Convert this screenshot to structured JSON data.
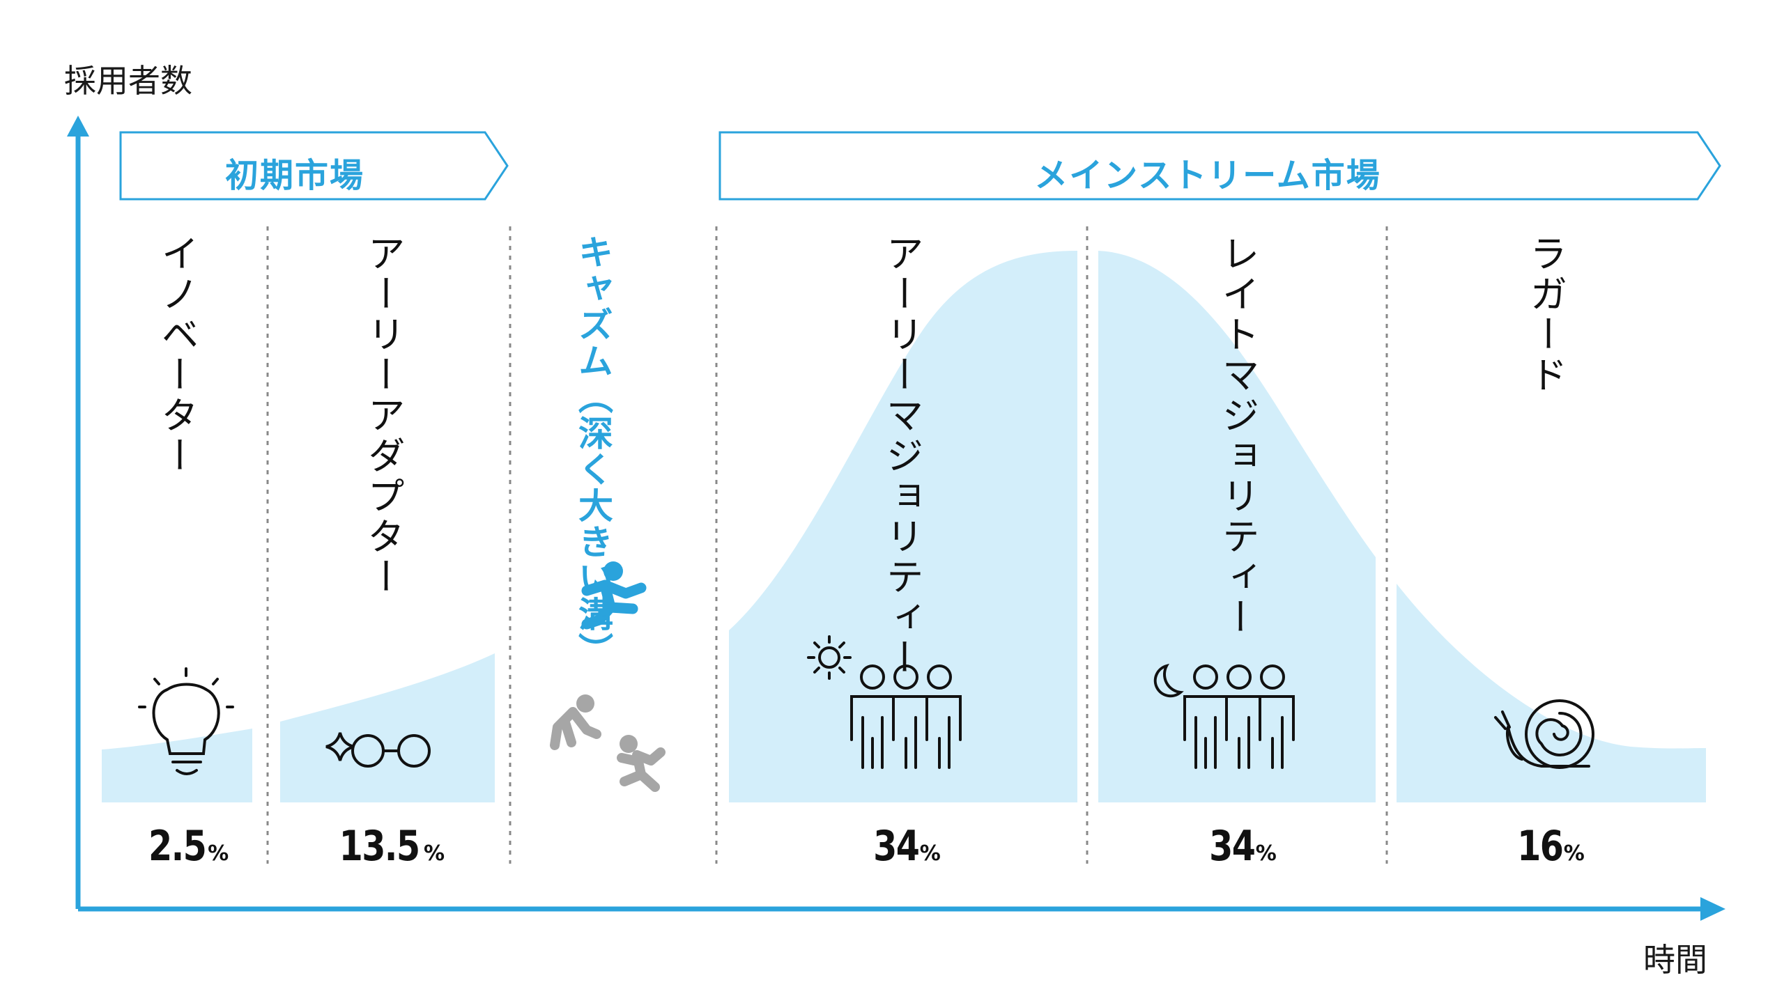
{
  "axes": {
    "y_label": "採用者数",
    "x_label": "時間"
  },
  "markets": [
    {
      "label": "初期市場"
    },
    {
      "label": "メインストリーム市場"
    }
  ],
  "segments": [
    {
      "label": "イノベーター",
      "percent": "2.5",
      "unit": "%",
      "icon": "lightbulb-icon"
    },
    {
      "label": "アーリーアダプター",
      "percent": "13.5",
      "unit": "%",
      "icon": "glasses-sparkle-icon"
    },
    {
      "label": "キャズム（深く大きい溝）",
      "icon": "jumping-person-icon"
    },
    {
      "label": "アーリーマジョリティー",
      "percent": "34",
      "unit": "%",
      "icon": "sun-people-icon"
    },
    {
      "label": "レイトマジョリティー",
      "percent": "34",
      "unit": "%",
      "icon": "moon-people-icon"
    },
    {
      "label": "ラガード",
      "percent": "16",
      "unit": "%",
      "icon": "snail-icon"
    }
  ],
  "colors": {
    "accent": "#2aa3dc",
    "area": "#d3eefa",
    "gray": "#a6a6a6",
    "divider": "#888888"
  }
}
